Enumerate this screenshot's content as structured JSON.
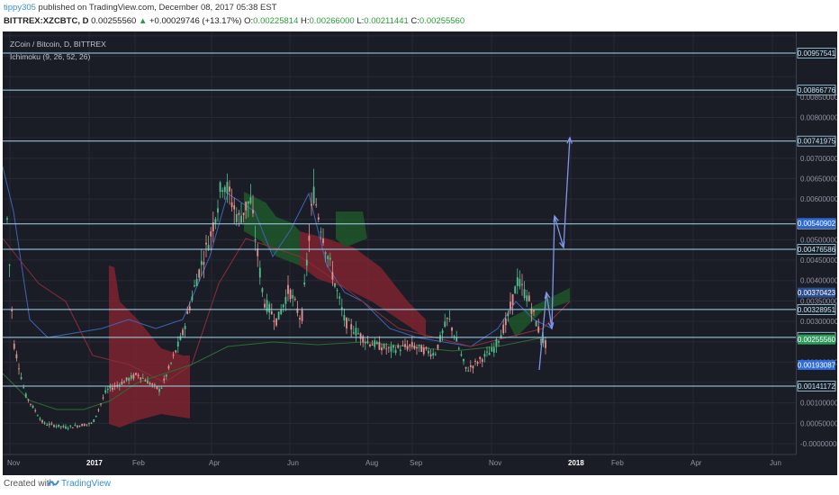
{
  "header": {
    "user": "tippy305",
    "published_text": " published on TradingView.com, December 08, 2017 05:38 EST",
    "symbol": "BITTREX:XZCBTC, D",
    "price": "0.00255560",
    "arrow": "▲",
    "change": "+0.00029746 (+13.17%)",
    "o_label": "O:",
    "o_value": "0.00225814",
    "h_label": "H:",
    "h_value": "0.00266000",
    "l_label": "L:",
    "l_value": "0.00211441",
    "c_label": "C:",
    "c_value": "0.00255560"
  },
  "chart": {
    "legend_title": "ZCoin / Bitcoin, D, BITTREX",
    "legend_indicator": "Ichimoku (9, 26, 52, 26)",
    "price_scale": [
      "0.00850000",
      "0.00800000",
      "0.00700000",
      "0.00650000",
      "0.00600000",
      "0.00500000",
      "0.00450000",
      "0.00400000",
      "0.00350000",
      "0.00300000",
      "0.00200000",
      "0.00100000",
      "0.00050000",
      "-0.00000000"
    ],
    "time_scale": [
      "Nov",
      "2017",
      "Feb",
      "Apr",
      "Jun",
      "Aug",
      "Sep",
      "Nov",
      "2018",
      "Feb",
      "Apr",
      "Jun"
    ],
    "horizontal_lines": [
      {
        "label": "0.00957541",
        "price": 0.00957541
      },
      {
        "label": "0.00866776",
        "price": 0.00866776
      },
      {
        "label": "0.00741975",
        "price": 0.00741975
      },
      {
        "label": "0.00539041",
        "price": 0.00539041
      },
      {
        "label": "0.00476586",
        "price": 0.00476586
      },
      {
        "label": "0.00328951",
        "price": 0.00328951
      },
      {
        "label": "0.00260775",
        "price": 0.00260775
      },
      {
        "label": "0.00141172",
        "price": 0.00141172
      }
    ],
    "price_tags": [
      {
        "label": "0.00540902",
        "price": 0.00540902
      },
      {
        "label": "0.00370423",
        "price": 0.00370423
      },
      {
        "label": "0.00255560",
        "price": 0.0025556
      },
      {
        "label": "0.00193087",
        "price": 0.00193087
      }
    ],
    "colors": {
      "background": "#1b1d26",
      "up": "#4fc08d",
      "down": "#e88f8f",
      "level_line": "#a7d8f0",
      "arrow": "#7f95e8",
      "cloud_red": "#8a2430",
      "cloud_green": "#1f5e2a"
    }
  },
  "footer": {
    "created_with": "Created with",
    "brand": "TradingView"
  }
}
